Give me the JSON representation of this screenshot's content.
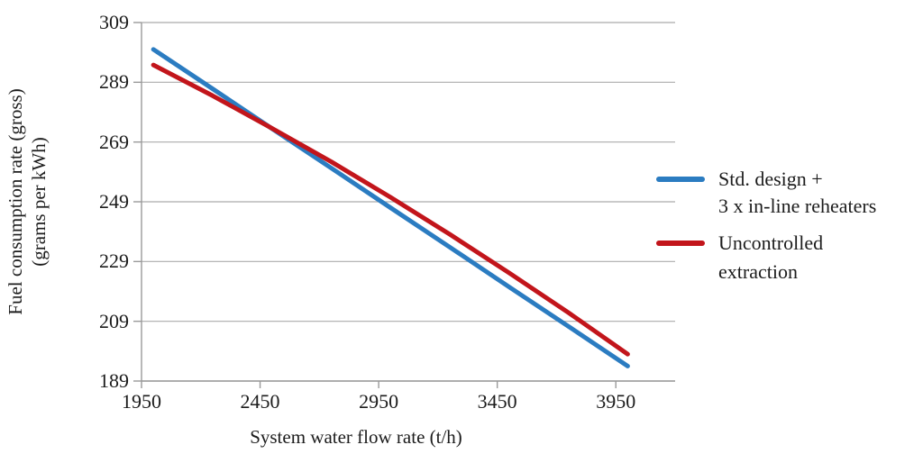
{
  "chart_data": {
    "type": "line",
    "title": "",
    "xlabel": "System water flow rate (t/h)",
    "ylabel_line1": "Fuel consumption rate (gross)",
    "ylabel_line2": "(grams per kWh)",
    "x": [
      2000,
      2250,
      2500,
      2750,
      3000,
      3250,
      3500,
      3750,
      4000
    ],
    "series": [
      {
        "name": "Std. design + 3 x in-line reheaters",
        "color": "#2b7cc1",
        "values": [
          300,
          286.8,
          273.5,
          260.3,
          247,
          233.8,
          220.5,
          207.3,
          194
        ]
      },
      {
        "name": "Uncontrolled extraction",
        "color": "#c2151b",
        "values": [
          294.8,
          284.5,
          273.6,
          262.4,
          250.5,
          238.1,
          225.2,
          211.9,
          198
        ]
      }
    ],
    "xticks": [
      1950,
      2450,
      2950,
      3450,
      3950
    ],
    "yticks": [
      189,
      209,
      229,
      249,
      269,
      289,
      309
    ],
    "xlim": [
      1950,
      4200
    ],
    "ylim": [
      189,
      309
    ],
    "grid": "horizontal-only",
    "legend_position": "right"
  },
  "axis_titles": {
    "x": "System water flow rate (t/h)",
    "y_line1": "Fuel consumption rate (gross)",
    "y_line2": "(grams per kWh)"
  },
  "legend": {
    "entries": [
      {
        "label_line1": "Std. design +",
        "label_line2": "3 x in-line reheaters",
        "color": "#2b7cc1"
      },
      {
        "label_line1": "Uncontrolled",
        "label_line2": "extraction",
        "color": "#c2151b"
      }
    ]
  },
  "colors": {
    "series_blue": "#2b7cc1",
    "series_red": "#c2151b",
    "gridline": "#ababab",
    "axis": "#9a9a9a",
    "text": "#1c1c1c",
    "background": "#ffffff"
  }
}
